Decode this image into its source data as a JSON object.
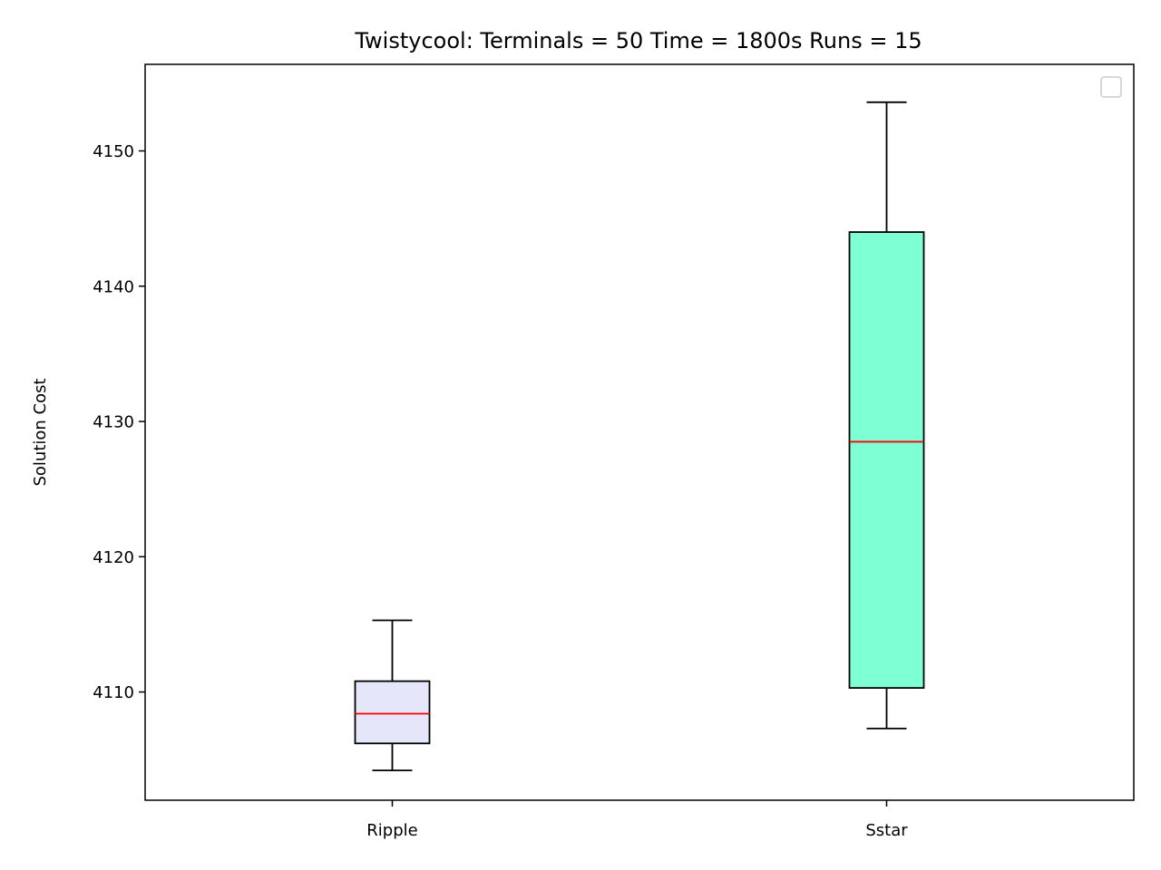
{
  "chart_data": {
    "type": "box",
    "title": "Twistycool:  Terminals = 50  Time = 1800s  Runs = 15",
    "xlabel": "",
    "ylabel": "Solution Cost",
    "categories": [
      "Ripple",
      "Sstar"
    ],
    "ylim": [
      4102,
      4156.4
    ],
    "yticks": [
      4110,
      4120,
      4130,
      4140,
      4150
    ],
    "grid": false,
    "legend": "top-right (empty)",
    "colors": {
      "median": "#ff0000",
      "box_edge": "#000000"
    },
    "boxes": [
      {
        "name": "Ripple",
        "whisker_low": 4104.2,
        "q1": 4106.2,
        "median": 4108.4,
        "q3": 4110.8,
        "whisker_high": 4115.3,
        "fill": "#e6e6fa"
      },
      {
        "name": "Sstar",
        "whisker_low": 4107.3,
        "q1": 4110.3,
        "median": 4128.5,
        "q3": 4144.0,
        "whisker_high": 4153.6,
        "fill": "#7fffd4"
      }
    ]
  }
}
